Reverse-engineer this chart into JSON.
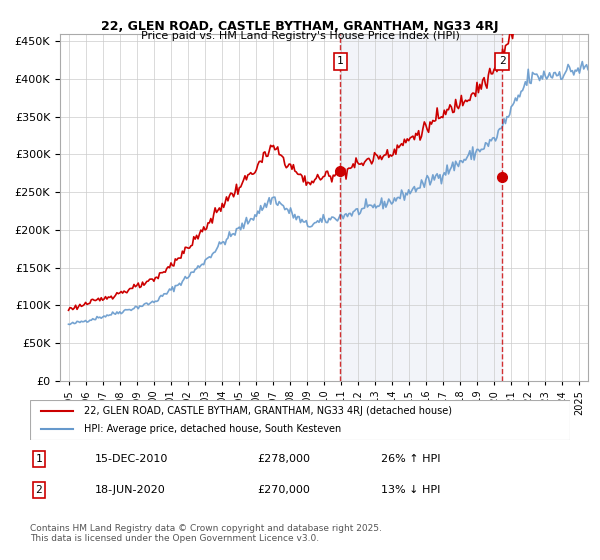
{
  "title_line1": "22, GLEN ROAD, CASTLE BYTHAM, GRANTHAM, NG33 4RJ",
  "title_line2": "Price paid vs. HM Land Registry's House Price Index (HPI)",
  "ylabel": "",
  "legend_line1": "22, GLEN ROAD, CASTLE BYTHAM, GRANTHAM, NG33 4RJ (detached house)",
  "legend_line2": "HPI: Average price, detached house, South Kesteven",
  "annotation1_label": "1",
  "annotation1_date": "15-DEC-2010",
  "annotation1_price": "£278,000",
  "annotation1_hpi": "26% ↑ HPI",
  "annotation2_label": "2",
  "annotation2_date": "18-JUN-2020",
  "annotation2_price": "£270,000",
  "annotation2_hpi": "13% ↓ HPI",
  "footer": "Contains HM Land Registry data © Crown copyright and database right 2025.\nThis data is licensed under the Open Government Licence v3.0.",
  "sale1_year": 2010.96,
  "sale1_value": 278000,
  "sale2_year": 2020.46,
  "sale2_value": 270000,
  "property_color": "#cc0000",
  "hpi_color": "#6699cc",
  "background_color": "#f0f4ff",
  "vline_color": "#cc0000",
  "grid_color": "#cccccc",
  "ylim": [
    0,
    460000
  ],
  "xlim_start": 1994.5,
  "xlim_end": 2025.5
}
